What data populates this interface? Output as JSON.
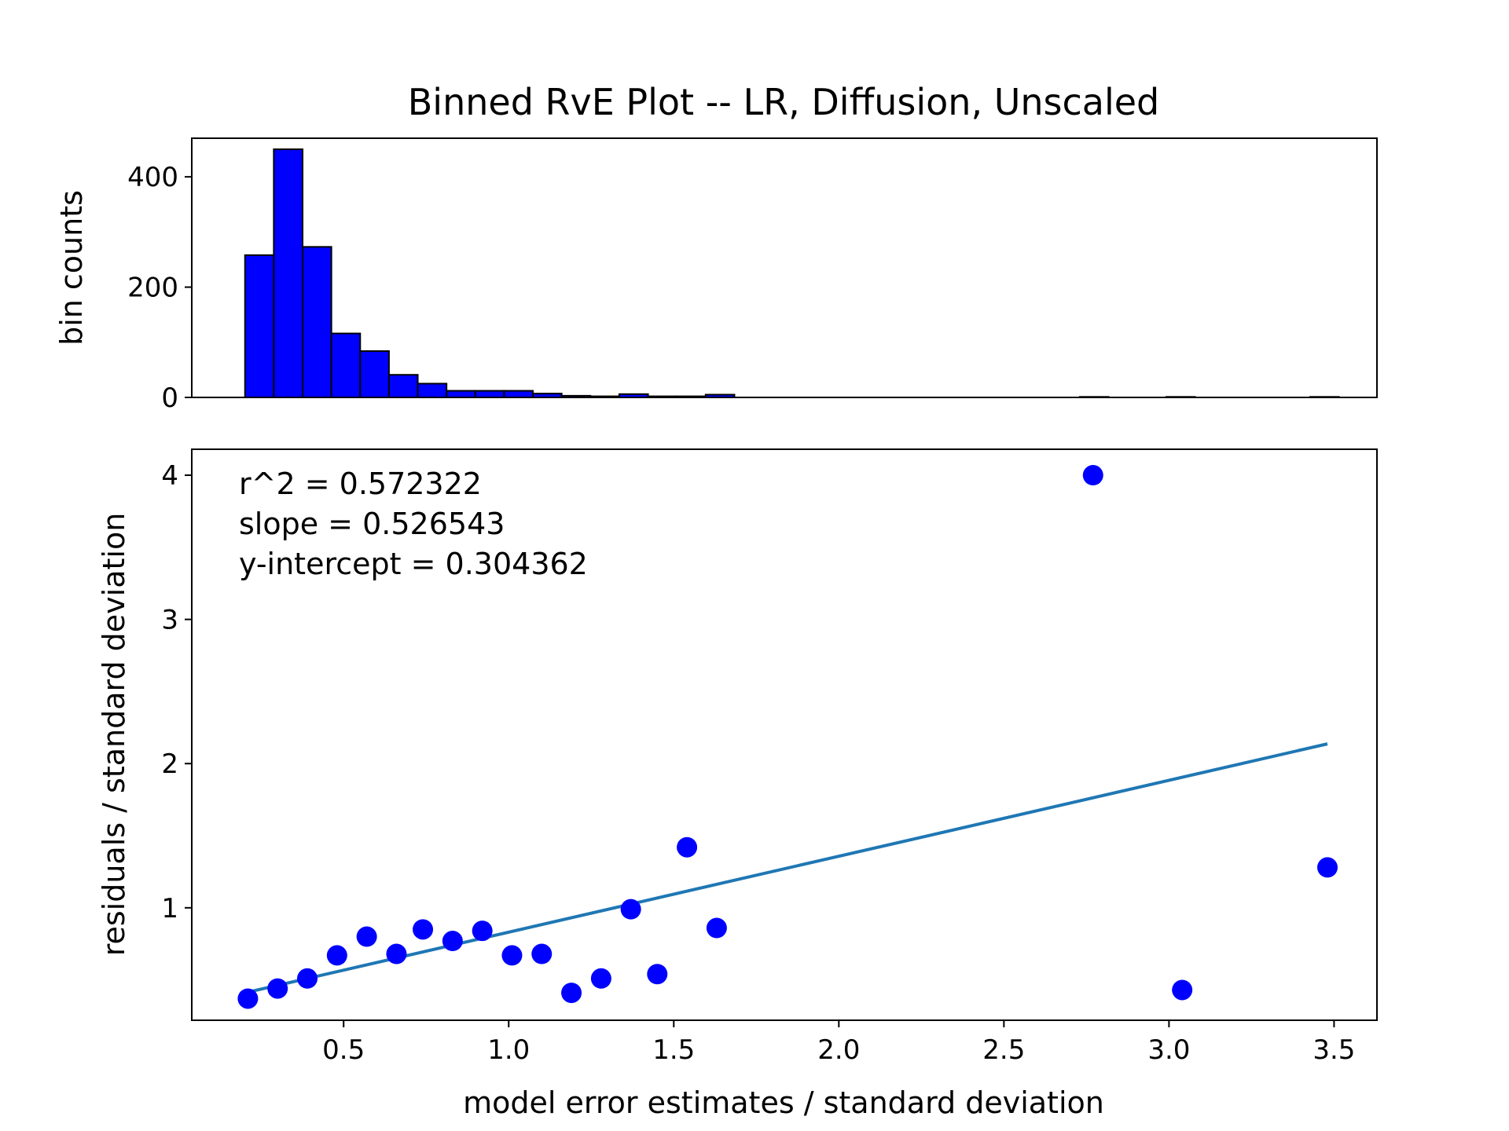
{
  "chart_data": [
    {
      "type": "bar",
      "title": "Binned RvE Plot -- LR, Diffusion, Unscaled",
      "xlabel": "",
      "ylabel": "bin counts",
      "ylim": [
        0,
        470
      ],
      "yticks": [
        0,
        200,
        400
      ],
      "bar_color": "#0000ff",
      "edge_color": "#000000",
      "bins": [
        {
          "x0": 0.2013,
          "x1": 0.2885,
          "count": 258
        },
        {
          "x0": 0.2885,
          "x1": 0.3757,
          "count": 450
        },
        {
          "x0": 0.3757,
          "x1": 0.4629,
          "count": 273
        },
        {
          "x0": 0.4629,
          "x1": 0.5501,
          "count": 116
        },
        {
          "x0": 0.5501,
          "x1": 0.6373,
          "count": 84
        },
        {
          "x0": 0.6373,
          "x1": 0.7245,
          "count": 41
        },
        {
          "x0": 0.7245,
          "x1": 0.8117,
          "count": 25
        },
        {
          "x0": 0.8117,
          "x1": 0.8989,
          "count": 12
        },
        {
          "x0": 0.8989,
          "x1": 0.9861,
          "count": 12
        },
        {
          "x0": 0.9861,
          "x1": 1.0733,
          "count": 12
        },
        {
          "x0": 1.0733,
          "x1": 1.1605,
          "count": 7
        },
        {
          "x0": 1.1605,
          "x1": 1.2477,
          "count": 3
        },
        {
          "x0": 1.2477,
          "x1": 1.3349,
          "count": 2
        },
        {
          "x0": 1.3349,
          "x1": 1.4221,
          "count": 6
        },
        {
          "x0": 1.4221,
          "x1": 1.5093,
          "count": 2
        },
        {
          "x0": 1.5093,
          "x1": 1.5965,
          "count": 2
        },
        {
          "x0": 1.5965,
          "x1": 1.6837,
          "count": 5
        },
        {
          "x0": 1.6837,
          "x1": 1.7709,
          "count": 0
        },
        {
          "x0": 1.7709,
          "x1": 1.8581,
          "count": 0
        },
        {
          "x0": 1.8581,
          "x1": 1.9453,
          "count": 0
        },
        {
          "x0": 1.9453,
          "x1": 2.0325,
          "count": 0
        },
        {
          "x0": 2.0325,
          "x1": 2.1197,
          "count": 0
        },
        {
          "x0": 2.1197,
          "x1": 2.2069,
          "count": 0
        },
        {
          "x0": 2.2069,
          "x1": 2.2941,
          "count": 0
        },
        {
          "x0": 2.2941,
          "x1": 2.3813,
          "count": 0
        },
        {
          "x0": 2.3813,
          "x1": 2.4685,
          "count": 0
        },
        {
          "x0": 2.4685,
          "x1": 2.5557,
          "count": 0
        },
        {
          "x0": 2.5557,
          "x1": 2.6429,
          "count": 0
        },
        {
          "x0": 2.6429,
          "x1": 2.7301,
          "count": 0
        },
        {
          "x0": 2.7301,
          "x1": 2.8173,
          "count": 1
        },
        {
          "x0": 2.8173,
          "x1": 2.9045,
          "count": 0
        },
        {
          "x0": 2.9045,
          "x1": 2.9917,
          "count": 0
        },
        {
          "x0": 2.9917,
          "x1": 3.0789,
          "count": 1
        },
        {
          "x0": 3.0789,
          "x1": 3.1661,
          "count": 0
        },
        {
          "x0": 3.1661,
          "x1": 3.2533,
          "count": 0
        },
        {
          "x0": 3.2533,
          "x1": 3.3405,
          "count": 0
        },
        {
          "x0": 3.3405,
          "x1": 3.4277,
          "count": 0
        },
        {
          "x0": 3.4277,
          "x1": 3.5149,
          "count": 1
        }
      ]
    },
    {
      "type": "scatter",
      "title": "",
      "xlabel": "model error estimates / standard deviation",
      "ylabel": "residuals / standard deviation",
      "xlim": [
        0.04,
        3.63
      ],
      "ylim": [
        0.22,
        4.18
      ],
      "xticks": [
        0.5,
        1.0,
        1.5,
        2.0,
        2.5,
        3.0,
        3.5
      ],
      "xtick_labels": [
        "0.5",
        "1.0",
        "1.5",
        "2.0",
        "2.5",
        "3.0",
        "3.5"
      ],
      "yticks": [
        1,
        2,
        3,
        4
      ],
      "ytick_labels": [
        "1",
        "2",
        "3",
        "4"
      ],
      "point_color": "#0000ff",
      "line_color": "#1f77b4",
      "points": [
        {
          "x": 0.21,
          "y": 0.37
        },
        {
          "x": 0.3,
          "y": 0.44
        },
        {
          "x": 0.39,
          "y": 0.51
        },
        {
          "x": 0.48,
          "y": 0.67
        },
        {
          "x": 0.57,
          "y": 0.8
        },
        {
          "x": 0.66,
          "y": 0.68
        },
        {
          "x": 0.74,
          "y": 0.85
        },
        {
          "x": 0.83,
          "y": 0.77
        },
        {
          "x": 0.92,
          "y": 0.84
        },
        {
          "x": 1.01,
          "y": 0.67
        },
        {
          "x": 1.1,
          "y": 0.68
        },
        {
          "x": 1.19,
          "y": 0.41
        },
        {
          "x": 1.28,
          "y": 0.51
        },
        {
          "x": 1.37,
          "y": 0.99
        },
        {
          "x": 1.45,
          "y": 0.54
        },
        {
          "x": 1.54,
          "y": 1.42
        },
        {
          "x": 1.63,
          "y": 0.86
        },
        {
          "x": 2.77,
          "y": 4.0
        },
        {
          "x": 3.04,
          "y": 0.43
        },
        {
          "x": 3.48,
          "y": 1.28
        }
      ],
      "fit_line": {
        "x0": 0.21,
        "x1": 3.48,
        "slope": 0.526543,
        "intercept": 0.304362
      },
      "annotations": [
        "r^2 = 0.572322",
        "slope = 0.526543",
        "y-intercept = 0.304362"
      ]
    }
  ]
}
